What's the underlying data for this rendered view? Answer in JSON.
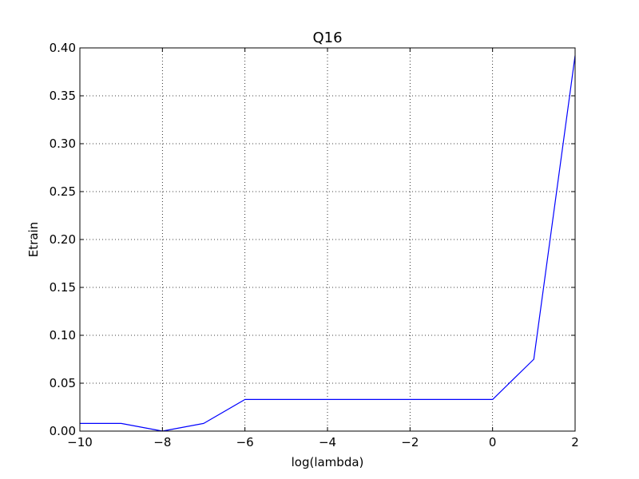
{
  "chart_data": {
    "type": "line",
    "title": "Q16",
    "xlabel": "log(lambda)",
    "ylabel": "Etrain",
    "xlim": [
      -10,
      2
    ],
    "ylim": [
      0.0,
      0.4
    ],
    "grid": true,
    "grid_style": "dotted",
    "x_ticks": [
      -10,
      -8,
      -6,
      -4,
      -2,
      0,
      2
    ],
    "x_tick_labels": [
      "−10",
      "−8",
      "−6",
      "−4",
      "−2",
      "0",
      "2"
    ],
    "y_ticks": [
      0.0,
      0.05,
      0.1,
      0.15,
      0.2,
      0.25,
      0.3,
      0.35,
      0.4
    ],
    "y_tick_labels": [
      "0.00",
      "0.05",
      "0.10",
      "0.15",
      "0.20",
      "0.25",
      "0.30",
      "0.35",
      "0.40"
    ],
    "series": [
      {
        "color": "#0000ff",
        "x": [
          -10,
          -9,
          -8,
          -7,
          -6,
          -5,
          -4,
          -3,
          -2,
          -1,
          0,
          1,
          2
        ],
        "y": [
          0.008,
          0.008,
          0.0,
          0.008,
          0.033,
          0.033,
          0.033,
          0.033,
          0.033,
          0.033,
          0.033,
          0.075,
          0.392
        ]
      }
    ]
  }
}
